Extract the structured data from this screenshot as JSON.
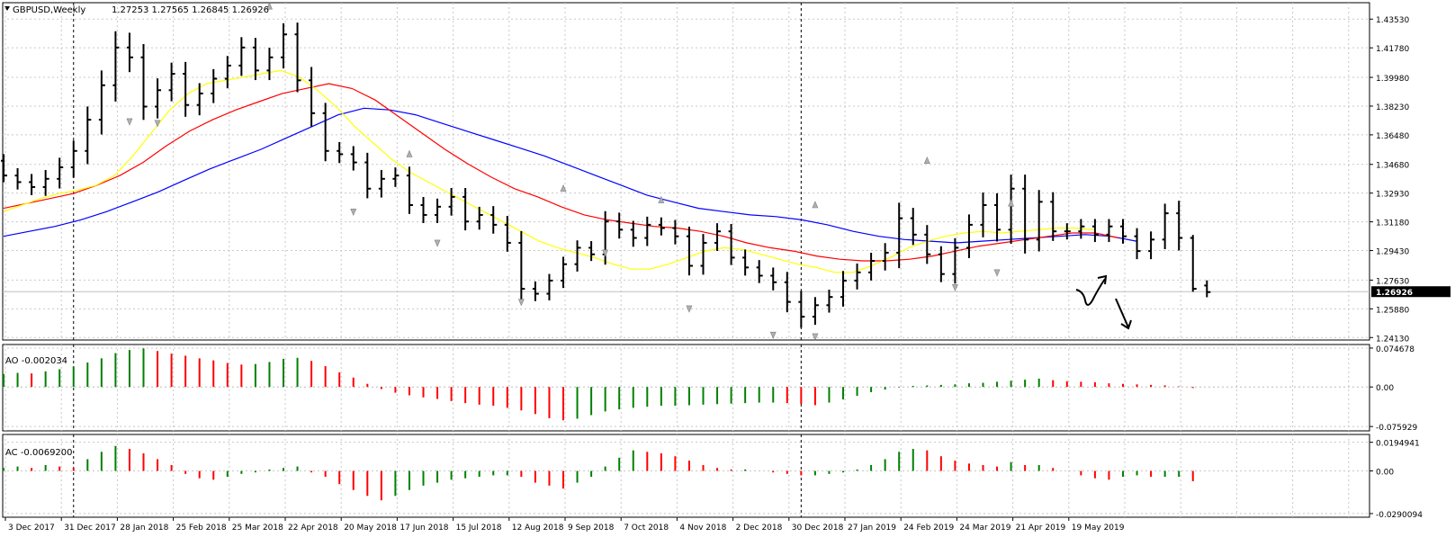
{
  "chart_data": {
    "type": "ohlc",
    "symbol_title": "GBPUSD,Weekly",
    "ohlc_header": "1.27253 1.27565 1.26845 1.26926",
    "current_price_label": "1.26926",
    "current_price": 1.26926,
    "main_y_ticks": [
      "1.43530",
      "1.41780",
      "1.39980",
      "1.38230",
      "1.36480",
      "1.34680",
      "1.32930",
      "1.31180",
      "1.29430",
      "1.27630",
      "1.25880",
      "1.24130"
    ],
    "ylim": [
      1.2398,
      1.4453
    ],
    "x_tick_labels": [
      "3 Dec 2017",
      "31 Dec 2017",
      "28 Jan 2018",
      "25 Feb 2018",
      "25 Mar 2018",
      "22 Apr 2018",
      "20 May 2018",
      "17 Jun 2018",
      "15 Jul 2018",
      "12 Aug 2018",
      "9 Sep 2018",
      "7 Oct 2018",
      "4 Nov 2018",
      "2 Dec 2018",
      "30 Dec 2018",
      "27 Jan 2019",
      "24 Feb 2019",
      "24 Mar 2019",
      "21 Apr 2019",
      "19 May 2019"
    ],
    "bars_close": [
      1.34,
      1.336,
      1.333,
      1.338,
      1.345,
      1.355,
      1.374,
      1.395,
      1.418,
      1.412,
      1.382,
      1.392,
      1.402,
      1.383,
      1.39,
      1.399,
      1.407,
      1.418,
      1.404,
      1.412,
      1.426,
      1.398,
      1.378,
      1.355,
      1.353,
      1.348,
      1.332,
      1.338,
      1.34,
      1.322,
      1.316,
      1.321,
      1.327,
      1.312,
      1.316,
      1.31,
      1.299,
      1.271,
      1.268,
      1.276,
      1.286,
      1.296,
      1.292,
      1.312,
      1.307,
      1.302,
      1.31,
      1.308,
      1.303,
      1.285,
      1.299,
      1.306,
      1.29,
      1.284,
      1.279,
      1.275,
      1.263,
      1.254,
      1.261,
      1.266,
      1.276,
      1.281,
      1.288,
      1.293,
      1.314,
      1.304,
      1.292,
      1.28,
      1.296,
      1.31,
      1.322,
      1.307,
      1.332,
      1.301,
      1.324,
      1.306,
      1.306,
      1.309,
      1.304,
      1.309,
      1.303,
      1.294,
      1.301,
      1.317,
      1.302,
      1.271,
      1.269
    ],
    "bars_open": [
      1.349,
      1.34,
      1.336,
      1.333,
      1.338,
      1.345,
      1.355,
      1.374,
      1.395,
      1.418,
      1.412,
      1.382,
      1.392,
      1.402,
      1.383,
      1.39,
      1.399,
      1.407,
      1.418,
      1.404,
      1.412,
      1.426,
      1.398,
      1.378,
      1.355,
      1.353,
      1.348,
      1.332,
      1.338,
      1.34,
      1.322,
      1.316,
      1.321,
      1.327,
      1.312,
      1.316,
      1.31,
      1.299,
      1.271,
      1.268,
      1.276,
      1.286,
      1.296,
      1.292,
      1.312,
      1.307,
      1.302,
      1.31,
      1.308,
      1.303,
      1.285,
      1.299,
      1.306,
      1.29,
      1.284,
      1.279,
      1.275,
      1.263,
      1.254,
      1.261,
      1.266,
      1.276,
      1.281,
      1.288,
      1.293,
      1.314,
      1.304,
      1.292,
      1.28,
      1.296,
      1.31,
      1.322,
      1.307,
      1.332,
      1.301,
      1.324,
      1.306,
      1.306,
      1.309,
      1.304,
      1.309,
      1.303,
      1.294,
      1.301,
      1.317,
      1.302,
      1.273
    ],
    "ma_yellow": [
      1.318,
      1.322,
      1.326,
      1.329,
      1.331,
      1.334,
      1.34,
      1.352,
      1.366,
      1.38,
      1.39,
      1.396,
      1.398,
      1.4,
      1.402,
      1.404,
      1.4,
      1.392,
      1.382,
      1.37,
      1.36,
      1.35,
      1.342,
      1.336,
      1.33,
      1.324,
      1.318,
      1.312,
      1.306,
      1.3,
      1.296,
      1.293,
      1.29,
      1.286,
      1.283,
      1.283,
      1.286,
      1.29,
      1.294,
      1.296,
      1.295,
      1.292,
      1.289,
      1.286,
      1.284,
      1.281,
      1.281,
      1.285,
      1.29,
      1.296,
      1.3,
      1.303,
      1.305,
      1.306,
      1.305,
      1.306,
      1.307,
      1.308,
      1.308,
      1.307
    ],
    "ma_red": [
      1.32,
      1.323,
      1.326,
      1.329,
      1.334,
      1.34,
      1.348,
      1.358,
      1.367,
      1.374,
      1.38,
      1.385,
      1.39,
      1.393,
      1.396,
      1.393,
      1.386,
      1.376,
      1.366,
      1.356,
      1.347,
      1.339,
      1.332,
      1.327,
      1.321,
      1.316,
      1.313,
      1.311,
      1.309,
      1.308,
      1.306,
      1.303,
      1.299,
      1.296,
      1.294,
      1.291,
      1.289,
      1.288,
      1.288,
      1.289,
      1.291,
      1.294,
      1.297,
      1.299,
      1.301,
      1.303,
      1.305,
      1.305,
      1.302
    ],
    "ma_blue": [
      1.303,
      1.306,
      1.309,
      1.313,
      1.318,
      1.324,
      1.33,
      1.337,
      1.344,
      1.35,
      1.356,
      1.363,
      1.37,
      1.377,
      1.381,
      1.38,
      1.377,
      1.372,
      1.367,
      1.362,
      1.357,
      1.352,
      1.346,
      1.34,
      1.334,
      1.328,
      1.324,
      1.32,
      1.318,
      1.316,
      1.315,
      1.313,
      1.31,
      1.306,
      1.303,
      1.301,
      1.3,
      1.299,
      1.3,
      1.301,
      1.302,
      1.303,
      1.304,
      1.303,
      1.3
    ],
    "ao": {
      "label": "AO -0.002034",
      "y_ticks": [
        "0.074678",
        "0.00",
        "-0.075929"
      ],
      "ylim": [
        -0.0843,
        0.0815
      ],
      "values": [
        0.025,
        0.027,
        0.026,
        0.03,
        0.034,
        0.039,
        0.047,
        0.055,
        0.065,
        0.071,
        0.074,
        0.069,
        0.064,
        0.06,
        0.055,
        0.051,
        0.046,
        0.043,
        0.044,
        0.048,
        0.054,
        0.056,
        0.05,
        0.04,
        0.028,
        0.018,
        0.006,
        -0.004,
        -0.011,
        -0.016,
        -0.02,
        -0.023,
        -0.027,
        -0.031,
        -0.034,
        -0.036,
        -0.04,
        -0.045,
        -0.052,
        -0.06,
        -0.064,
        -0.061,
        -0.054,
        -0.047,
        -0.043,
        -0.04,
        -0.038,
        -0.036,
        -0.036,
        -0.035,
        -0.034,
        -0.033,
        -0.032,
        -0.031,
        -0.03,
        -0.03,
        -0.031,
        -0.033,
        -0.035,
        -0.03,
        -0.024,
        -0.017,
        -0.01,
        -0.005,
        -0.001,
        0.002,
        0.003,
        0.004,
        0.005,
        0.007,
        0.008,
        0.01,
        0.012,
        0.014,
        0.016,
        0.013,
        0.011,
        0.01,
        0.009,
        0.007,
        0.006,
        0.005,
        0.004,
        0.003,
        0.001,
        -0.002
      ]
    },
    "ac": {
      "label": "AC -0.0069200",
      "y_ticks": [
        "0.0194941",
        "0.00",
        "-0.0290094"
      ],
      "ylim": [
        -0.0315,
        0.0248
      ],
      "values": [
        0.002,
        0.003,
        0.002,
        0.004,
        0.003,
        0.002,
        0.008,
        0.013,
        0.017,
        0.015,
        0.012,
        0.008,
        0.004,
        -0.002,
        -0.005,
        -0.006,
        -0.004,
        -0.002,
        -0.001,
        0.001,
        0.002,
        0.003,
        -0.001,
        -0.004,
        -0.009,
        -0.013,
        -0.017,
        -0.02,
        -0.017,
        -0.013,
        -0.01,
        -0.008,
        -0.006,
        -0.005,
        -0.004,
        -0.003,
        -0.003,
        -0.004,
        -0.008,
        -0.01,
        -0.012,
        -0.008,
        -0.004,
        0.003,
        0.009,
        0.014,
        0.013,
        0.012,
        0.01,
        0.007,
        0.004,
        0.002,
        0.001,
        0.001,
        0.0,
        -0.001,
        -0.002,
        -0.003,
        -0.003,
        -0.002,
        -0.001,
        0.001,
        0.004,
        0.008,
        0.013,
        0.015,
        0.014,
        0.01,
        0.007,
        0.005,
        0.004,
        0.003,
        0.006,
        0.004,
        0.004,
        0.002,
        0.0,
        -0.003,
        -0.005,
        -0.006,
        -0.004,
        -0.003,
        -0.004,
        -0.004,
        -0.004,
        -0.007
      ]
    },
    "colors": {
      "background": "#ffffff",
      "grid": "#c8c8c8",
      "ma_yellow": "#ffff00",
      "ma_red": "#ff0000",
      "ma_blue": "#0000ff",
      "bullish_bar": "#008000",
      "bearish_bar": "#ff0000",
      "price_bar": "#000000",
      "current_price_bg": "#000000"
    }
  }
}
